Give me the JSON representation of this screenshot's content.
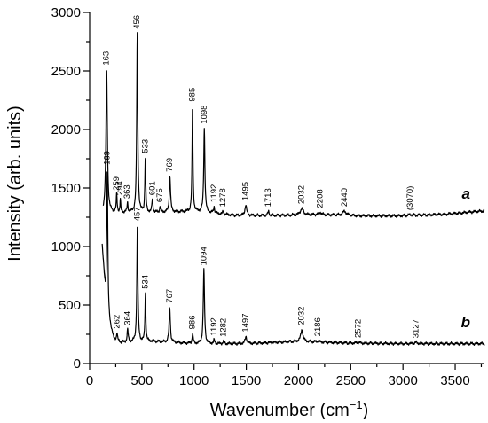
{
  "chart_data": {
    "type": "line",
    "xlabel": "Wavenumber (cm",
    "xlabel_sup": "−1",
    "xlabel_end": ")",
    "ylabel": "Intensity (arb. units)",
    "xlim": [
      0,
      3780
    ],
    "ylim": [
      0,
      3000
    ],
    "x_ticks": [
      0,
      500,
      1000,
      1500,
      2000,
      2500,
      3000,
      3500
    ],
    "y_ticks": [
      0,
      500,
      1000,
      1500,
      2000,
      2500,
      3000
    ],
    "x_minor_step": 250,
    "y_minor_step": 250,
    "grid": false,
    "legend": "none",
    "series": [
      {
        "name": "a",
        "baseline": [
          [
            130,
            1290
          ],
          [
            600,
            1290
          ],
          [
            1000,
            1300
          ],
          [
            1400,
            1265
          ],
          [
            1800,
            1265
          ],
          [
            2200,
            1272
          ],
          [
            2600,
            1262
          ],
          [
            3000,
            1262
          ],
          [
            3400,
            1275
          ],
          [
            3780,
            1305
          ]
        ],
        "peaks": [
          {
            "x": 163,
            "y": 2510,
            "w": 16,
            "label": "163"
          },
          {
            "x": 259,
            "y": 1440,
            "w": 10,
            "label": "259"
          },
          {
            "x": 294,
            "y": 1400,
            "w": 8,
            "label": "294"
          },
          {
            "x": 363,
            "y": 1370,
            "w": 10,
            "label": "363"
          },
          {
            "x": 456,
            "y": 2820,
            "w": 12,
            "label": "456"
          },
          {
            "x": 533,
            "y": 1760,
            "w": 10,
            "label": "533"
          },
          {
            "x": 601,
            "y": 1400,
            "w": 12,
            "label": "601"
          },
          {
            "x": 675,
            "y": 1340,
            "w": 12,
            "label": "675"
          },
          {
            "x": 769,
            "y": 1600,
            "w": 14,
            "label": "769"
          },
          {
            "x": 985,
            "y": 2200,
            "w": 10,
            "label": "985"
          },
          {
            "x": 1098,
            "y": 2010,
            "w": 13,
            "label": "1098"
          },
          {
            "x": 1192,
            "y": 1340,
            "w": 12,
            "label": "1192"
          },
          {
            "x": 1278,
            "y": 1300,
            "w": 12,
            "label": "1278"
          },
          {
            "x": 1495,
            "y": 1355,
            "w": 20,
            "label": "1495"
          },
          {
            "x": 1713,
            "y": 1300,
            "w": 15,
            "label": "1713"
          },
          {
            "x": 2032,
            "y": 1325,
            "w": 35,
            "label": "2032"
          },
          {
            "x": 2208,
            "y": 1292,
            "w": 25,
            "label": "2208"
          },
          {
            "x": 2440,
            "y": 1302,
            "w": 40,
            "label": "2440"
          },
          {
            "x": 3070,
            "y": 1272,
            "w": 50,
            "label": "(3070)"
          }
        ]
      },
      {
        "name": "b",
        "baseline": [
          [
            120,
            1000
          ],
          [
            150,
            600
          ],
          [
            180,
            380
          ],
          [
            230,
            210
          ],
          [
            300,
            180
          ],
          [
            600,
            190
          ],
          [
            1000,
            170
          ],
          [
            1500,
            170
          ],
          [
            2000,
            190
          ],
          [
            2500,
            175
          ],
          [
            3000,
            170
          ],
          [
            3780,
            170
          ]
        ],
        "peaks": [
          {
            "x": 169,
            "y": 1660,
            "w": 12,
            "label": "169"
          },
          {
            "x": 262,
            "y": 260,
            "w": 10,
            "label": "262"
          },
          {
            "x": 364,
            "y": 290,
            "w": 12,
            "label": "364"
          },
          {
            "x": 457,
            "y": 1180,
            "w": 12,
            "label": "457"
          },
          {
            "x": 534,
            "y": 600,
            "w": 10,
            "label": "534"
          },
          {
            "x": 767,
            "y": 480,
            "w": 14,
            "label": "767"
          },
          {
            "x": 986,
            "y": 255,
            "w": 12,
            "label": "986"
          },
          {
            "x": 1094,
            "y": 800,
            "w": 14,
            "label": "1094"
          },
          {
            "x": 1192,
            "y": 200,
            "w": 12,
            "label": "1192"
          },
          {
            "x": 1282,
            "y": 190,
            "w": 12,
            "label": "1282"
          },
          {
            "x": 1497,
            "y": 230,
            "w": 20,
            "label": "1497"
          },
          {
            "x": 2032,
            "y": 290,
            "w": 25,
            "label": "2032"
          },
          {
            "x": 2186,
            "y": 195,
            "w": 20,
            "label": "2186"
          },
          {
            "x": 2572,
            "y": 182,
            "w": 30,
            "label": "2572"
          },
          {
            "x": 3127,
            "y": 180,
            "w": 35,
            "label": "3127"
          }
        ]
      }
    ]
  }
}
